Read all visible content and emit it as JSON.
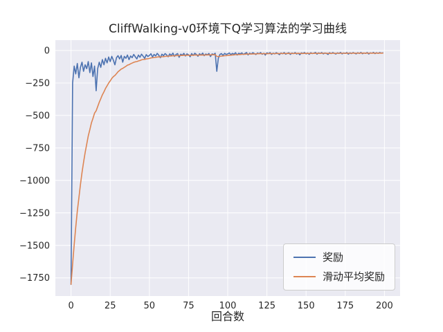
{
  "chart_data": {
    "type": "line",
    "title": "CliffWalking-v0环境下Q学习算法的学习曲线",
    "xlabel": "回合数",
    "ylabel": "",
    "grid": true,
    "legend_position": "lower right",
    "style": {
      "axes_bg": "#eaeaf2",
      "grid_color": "#ffffff",
      "text_color": "#262626",
      "figure_bg": "#ffffff"
    },
    "xlim": [
      -10,
      210
    ],
    "ylim": [
      -1890,
      80
    ],
    "xticks": [
      0,
      25,
      50,
      75,
      100,
      125,
      150,
      175,
      200
    ],
    "xticklabels": [
      "0",
      "25",
      "50",
      "75",
      "100",
      "125",
      "150",
      "175",
      "200"
    ],
    "yticks": [
      0,
      -250,
      -500,
      -750,
      -1000,
      -1250,
      -1500,
      -1750
    ],
    "yticklabels": [
      "0",
      "−250",
      "−500",
      "−750",
      "−1000",
      "−1250",
      "−1500",
      "−1750"
    ],
    "x": [
      0,
      1,
      2,
      3,
      4,
      5,
      6,
      7,
      8,
      9,
      10,
      11,
      12,
      13,
      14,
      15,
      16,
      17,
      18,
      19,
      20,
      21,
      22,
      23,
      24,
      25,
      26,
      27,
      28,
      29,
      30,
      31,
      32,
      33,
      34,
      35,
      36,
      37,
      38,
      39,
      40,
      41,
      42,
      43,
      44,
      45,
      46,
      47,
      48,
      49,
      50,
      51,
      52,
      53,
      54,
      55,
      56,
      57,
      58,
      59,
      60,
      61,
      62,
      63,
      64,
      65,
      66,
      67,
      68,
      69,
      70,
      71,
      72,
      73,
      74,
      75,
      76,
      77,
      78,
      79,
      80,
      81,
      82,
      83,
      84,
      85,
      86,
      87,
      88,
      89,
      90,
      91,
      92,
      93,
      94,
      95,
      96,
      97,
      98,
      99,
      100,
      101,
      102,
      103,
      104,
      105,
      106,
      107,
      108,
      109,
      110,
      111,
      112,
      113,
      114,
      115,
      116,
      117,
      118,
      119,
      120,
      121,
      122,
      123,
      124,
      125,
      126,
      127,
      128,
      129,
      130,
      131,
      132,
      133,
      134,
      135,
      136,
      137,
      138,
      139,
      140,
      141,
      142,
      143,
      144,
      145,
      146,
      147,
      148,
      149,
      150,
      151,
      152,
      153,
      154,
      155,
      156,
      157,
      158,
      159,
      160,
      161,
      162,
      163,
      164,
      165,
      166,
      167,
      168,
      169,
      170,
      171,
      172,
      173,
      174,
      175,
      176,
      177,
      178,
      179,
      180,
      181,
      182,
      183,
      184,
      185,
      186,
      187,
      188,
      189,
      190,
      191,
      192,
      193,
      194,
      195,
      196,
      197,
      198,
      199
    ],
    "series": [
      {
        "name": "奖励",
        "color": "#4c72b0",
        "values": [
          -1800,
          -250,
          -120,
          -180,
          -100,
          -210,
          -130,
          -90,
          -160,
          -110,
          -140,
          -85,
          -170,
          -95,
          -200,
          -120,
          -310,
          -140,
          -90,
          -130,
          -70,
          -110,
          -60,
          -95,
          -50,
          -85,
          -45,
          -75,
          -110,
          -55,
          -40,
          -65,
          -38,
          -90,
          -45,
          -60,
          -35,
          -70,
          -42,
          -55,
          -30,
          -48,
          -65,
          -35,
          -52,
          -28,
          -44,
          -60,
          -32,
          -46,
          -38,
          -25,
          -50,
          -30,
          -42,
          -22,
          -36,
          -55,
          -28,
          -40,
          -24,
          -34,
          -48,
          -26,
          -38,
          -20,
          -45,
          -30,
          -24,
          -52,
          -28,
          -36,
          -22,
          -42,
          -26,
          -33,
          -48,
          -24,
          -38,
          -21,
          -30,
          -44,
          -25,
          -35,
          -20,
          -40,
          -27,
          -33,
          -23,
          -46,
          -26,
          -32,
          -21,
          -160,
          -60,
          -30,
          -24,
          -38,
          -22,
          -30,
          -26,
          -19,
          -32,
          -22,
          -28,
          -17,
          -35,
          -21,
          -26,
          -18,
          -30,
          -23,
          -16,
          -34,
          -20,
          -27,
          -17,
          -24,
          -31,
          -19,
          -25,
          -16,
          -29,
          -21,
          -35,
          -18,
          -24,
          -16,
          -30,
          -20,
          -26,
          -17,
          -23,
          -32,
          -19,
          -25,
          -16,
          -28,
          -21,
          -17,
          -30,
          -19,
          -24,
          -16,
          -27,
          -20,
          -33,
          -18,
          -23,
          -16,
          -26,
          -19,
          -29,
          -17,
          -24,
          -20,
          -15,
          -28,
          -18,
          -23,
          -16,
          -26,
          -19,
          -22,
          -30,
          -17,
          -24,
          -16,
          -21,
          -27,
          -18,
          -23,
          -15,
          -26,
          -19,
          -22,
          -16,
          -28,
          -18,
          -24,
          -16,
          -21,
          -26,
          -17,
          -23,
          -15,
          -25,
          -19,
          -22,
          -16,
          -27,
          -18,
          -21,
          -15,
          -24,
          -17,
          -22,
          -16,
          -20,
          -18
        ]
      },
      {
        "name": "滑动平均奖励",
        "color": "#dd8452",
        "values": [
          -1800,
          -1645,
          -1493,
          -1362,
          -1236,
          -1133,
          -1033,
          -939,
          -861,
          -786,
          -721,
          -658,
          -609,
          -557,
          -522,
          -482,
          -464,
          -432,
          -398,
          -371,
          -341,
          -318,
          -292,
          -272,
          -250,
          -234,
          -215,
          -201,
          -192,
          -178,
          -164,
          -154,
          -143,
          -138,
          -129,
          -122,
          -113,
          -109,
          -102,
          -97,
          -91,
          -87,
          -85,
          -80,
          -77,
          -72,
          -69,
          -68,
          -65,
          -63,
          -61,
          -57,
          -56,
          -54,
          -53,
          -50,
          -49,
          -50,
          -48,
          -47,
          -45,
          -44,
          -44,
          -42,
          -42,
          -40,
          -41,
          -40,
          -38,
          -39,
          -38,
          -38,
          -36,
          -37,
          -36,
          -36,
          -37,
          -36,
          -36,
          -35,
          -35,
          -36,
          -35,
          -35,
          -34,
          -35,
          -34,
          -34,
          -33,
          -34,
          -33,
          -33,
          -32,
          -45,
          -46,
          -45,
          -43,
          -42,
          -40,
          -39,
          -38,
          -36,
          -36,
          -34,
          -34,
          -32,
          -32,
          -31,
          -31,
          -29,
          -29,
          -29,
          -27,
          -28,
          -27,
          -27,
          -26,
          -26,
          -26,
          -25,
          -25,
          -24,
          -25,
          -24,
          -25,
          -25,
          -24,
          -23,
          -24,
          -24,
          -24,
          -23,
          -23,
          -24,
          -23,
          -23,
          -23,
          -23,
          -23,
          -22,
          -23,
          -23,
          -23,
          -22,
          -22,
          -22,
          -23,
          -23,
          -23,
          -22,
          -22,
          -22,
          -23,
          -22,
          -22,
          -22,
          -21,
          -22,
          -21,
          -22,
          -21,
          -21,
          -21,
          -21,
          -22,
          -22,
          -22,
          -21,
          -21,
          -22,
          -21,
          -21,
          -21,
          -21,
          -21,
          -21,
          -20,
          -21,
          -21,
          -21,
          -20,
          -20,
          -21,
          -20,
          -20,
          -20,
          -20,
          -20,
          -20,
          -20,
          -21,
          -20,
          -20,
          -20,
          -20,
          -20,
          -20,
          -20,
          -20,
          -20
        ]
      }
    ]
  }
}
